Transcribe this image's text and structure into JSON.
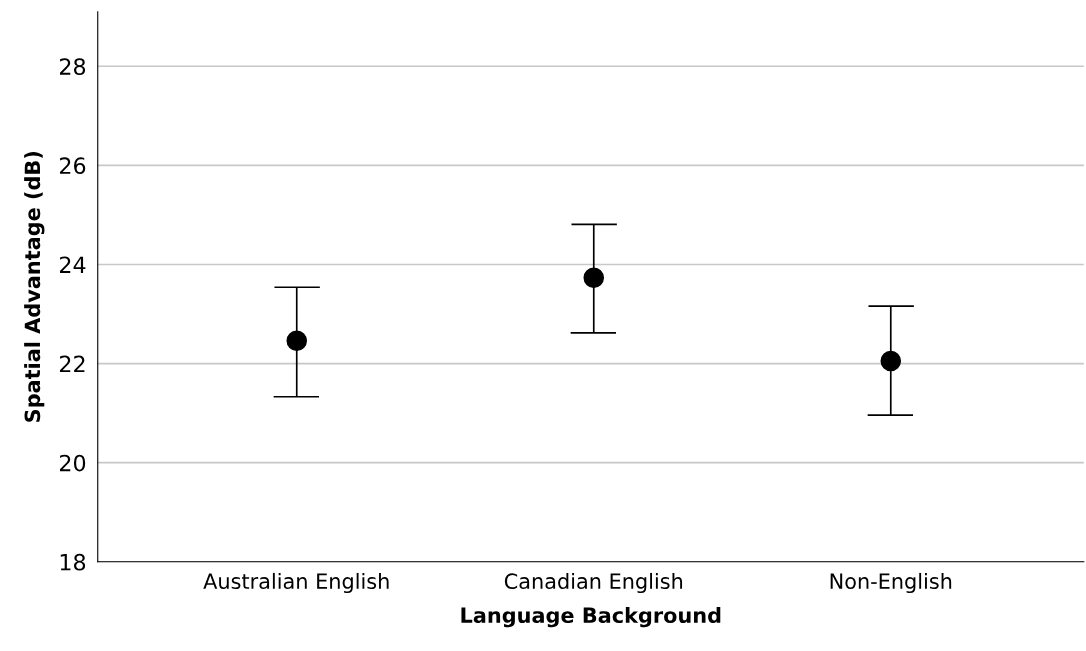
{
  "chart_data": {
    "type": "scatter",
    "xlabel": "Language Background",
    "ylabel": "Spatial Advantage (dB)",
    "categories": [
      "Australian English",
      "Canadian English",
      "Non-English"
    ],
    "values": [
      22.46,
      23.73,
      22.05
    ],
    "errors": [
      [
        21.33,
        23.54
      ],
      [
        22.62,
        24.81
      ],
      [
        20.96,
        23.16
      ]
    ],
    "color": "#000000",
    "marker": "circle",
    "ylim": [
      18,
      29.1
    ],
    "yticks": [
      18,
      20,
      22,
      24,
      26,
      28
    ],
    "grid": "y",
    "legend": false
  }
}
